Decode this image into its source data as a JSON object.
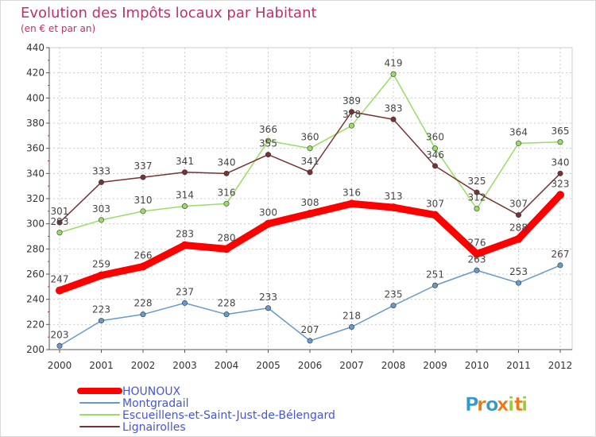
{
  "chart_data": {
    "type": "line",
    "title": "Evolution des Impôts locaux par Habitant",
    "subtitle": "(en € et par an)",
    "xlabel": "",
    "ylabel": "",
    "categories": [
      "2000",
      "2001",
      "2002",
      "2003",
      "2004",
      "2005",
      "2006",
      "2007",
      "2008",
      "2009",
      "2010",
      "2011",
      "2012"
    ],
    "ylim": [
      200,
      440
    ],
    "yticks": [
      200,
      220,
      240,
      260,
      280,
      300,
      320,
      340,
      360,
      380,
      400,
      420,
      440
    ],
    "grid": true,
    "legend_position": "bottom-left",
    "series": [
      {
        "name": "HOUNOUX",
        "color": "#ff0000",
        "values": [
          247,
          259,
          266,
          283,
          280,
          300,
          308,
          316,
          313,
          307,
          276,
          288,
          323
        ]
      },
      {
        "name": "Montgradail",
        "color": "#6699cc",
        "values": [
          203,
          223,
          228,
          237,
          228,
          233,
          207,
          218,
          235,
          251,
          263,
          253,
          267
        ]
      },
      {
        "name": "Escueillens-et-Saint-Just-de-Bélengard",
        "color": "#99dd66",
        "values": [
          293,
          303,
          310,
          314,
          316,
          366,
          360,
          378,
          419,
          360,
          312,
          364,
          365
        ]
      },
      {
        "name": "Lignairolles",
        "color": "#773333",
        "values": [
          301,
          333,
          337,
          341,
          340,
          355,
          341,
          389,
          383,
          346,
          325,
          307,
          340
        ]
      }
    ]
  },
  "branding": {
    "logo_text": "Proxiti",
    "letters": [
      "P",
      "r",
      "o",
      "x",
      "i",
      "t",
      "i"
    ],
    "letter_colors": [
      "#3399cc",
      "#ee7711",
      "#3399cc",
      "#ee7711",
      "#99cc33",
      "#ee7711",
      "#99cc33"
    ]
  },
  "colors": {
    "title": "#c0306a",
    "axis": "#333333",
    "grid": "#cccccc",
    "legend_text": "#4455dd"
  }
}
